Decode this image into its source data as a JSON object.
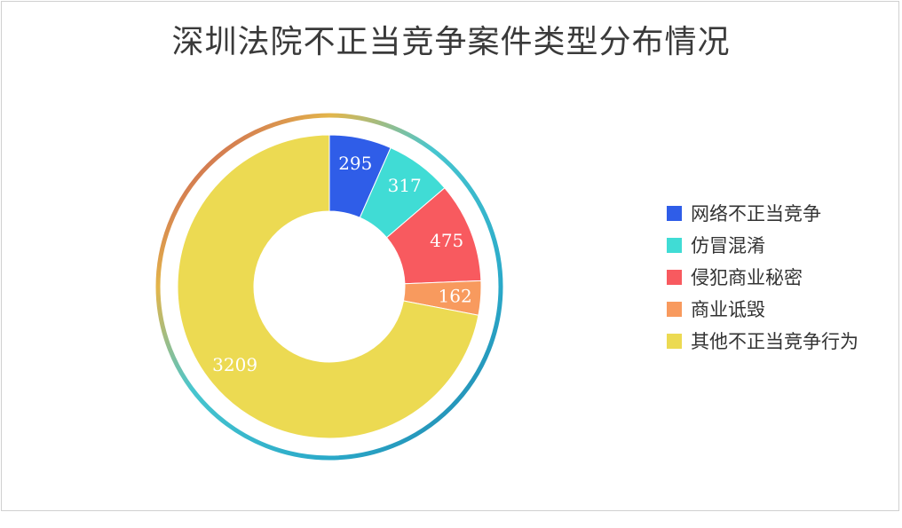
{
  "chart_data": {
    "type": "pie",
    "title": "深圳法院不正当竞争案件类型分布情况",
    "categories": [
      "网络不正当竞争",
      "仿冒混淆",
      "侵犯商业秘密",
      "商业诋毁",
      "其他不正当竞争行为"
    ],
    "values": [
      295,
      317,
      475,
      162,
      3209
    ],
    "colors": [
      "#2f5de8",
      "#40dcd5",
      "#f85a5f",
      "#f89a5e",
      "#ecda52"
    ],
    "legend_position": "right"
  }
}
